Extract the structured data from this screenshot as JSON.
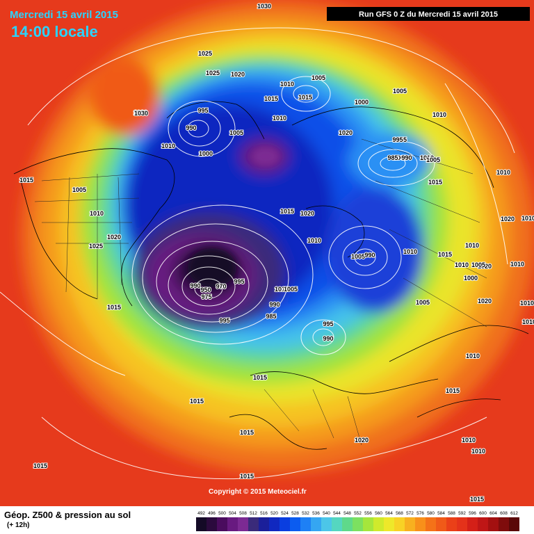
{
  "header": {
    "date": "Mercredi 15 avril 2015",
    "time": "14:00 locale",
    "run": "Run GFS 0 Z du Mercredi 15 avril 2015"
  },
  "footer": {
    "copyright": "Copyright © 2015 Meteociel.fr",
    "title": "Géop. Z500 & pression au sol",
    "subtitle": "(+ 12h)"
  },
  "legend": {
    "labels": [
      "492",
      "496",
      "500",
      "504",
      "508",
      "512",
      "516",
      "520",
      "524",
      "528",
      "532",
      "536",
      "540",
      "544",
      "548",
      "552",
      "556",
      "560",
      "564",
      "568",
      "572",
      "576",
      "580",
      "584",
      "588",
      "592",
      "596",
      "600",
      "604",
      "608",
      "612"
    ],
    "colors": [
      "#140a26",
      "#2b0a3d",
      "#4a0c5e",
      "#681a80",
      "#7c2a93",
      "#3a2a7a",
      "#1b1f9a",
      "#1028c0",
      "#0a3ee0",
      "#0b5cf0",
      "#1e80f5",
      "#35a6f2",
      "#4cc6e8",
      "#55d6c0",
      "#5fd98a",
      "#7ce060",
      "#a5e63c",
      "#cfea2c",
      "#eee82a",
      "#f8d225",
      "#f8b01f",
      "#f8901a",
      "#f47218",
      "#f05a18",
      "#ea4018",
      "#e4321a",
      "#d42018",
      "#bf1616",
      "#a31010",
      "#7f0c0c",
      "#5a0808"
    ],
    "colorbar_colors_note": ""
  },
  "map": {
    "pressure_labels": [
      {
        "text": "1030"
      },
      {
        "text": "1025"
      },
      {
        "text": "1020"
      },
      {
        "text": "1015"
      },
      {
        "text": "1010"
      },
      {
        "text": "1005"
      },
      {
        "text": "995"
      },
      {
        "text": "990"
      },
      {
        "text": "1000"
      },
      {
        "text": "1005"
      },
      {
        "text": "1010"
      },
      {
        "text": "1030"
      },
      {
        "text": "1010"
      },
      {
        "text": "1015"
      },
      {
        "text": "1005"
      },
      {
        "text": "1000"
      },
      {
        "text": "1010"
      },
      {
        "text": "1005"
      },
      {
        "text": "1020"
      },
      {
        "text": "1025"
      },
      {
        "text": "1030"
      },
      {
        "text": "1015"
      },
      {
        "text": "1020"
      },
      {
        "text": "1010"
      },
      {
        "text": "1005"
      },
      {
        "text": "1010"
      },
      {
        "text": "1010"
      },
      {
        "text": "1015"
      },
      {
        "text": "1020"
      },
      {
        "text": "1005"
      },
      {
        "text": "1010"
      },
      {
        "text": "985"
      },
      {
        "text": "990"
      },
      {
        "text": "1005"
      },
      {
        "text": "1015"
      },
      {
        "text": "995"
      },
      {
        "text": "1010"
      },
      {
        "text": "1010"
      },
      {
        "text": "1020"
      },
      {
        "text": "1005"
      },
      {
        "text": "990"
      },
      {
        "text": "1010"
      },
      {
        "text": "1015"
      },
      {
        "text": "1005"
      },
      {
        "text": "1010"
      },
      {
        "text": "1000"
      },
      {
        "text": "1020"
      },
      {
        "text": "1010"
      },
      {
        "text": "1010"
      },
      {
        "text": "1005"
      },
      {
        "text": "990"
      },
      {
        "text": "950"
      },
      {
        "text": "970"
      },
      {
        "text": "995"
      },
      {
        "text": "975"
      },
      {
        "text": "1010"
      },
      {
        "text": "1005"
      },
      {
        "text": "990"
      },
      {
        "text": "985"
      },
      {
        "text": "995"
      },
      {
        "text": "990"
      },
      {
        "text": "995"
      },
      {
        "text": "1015"
      },
      {
        "text": "1025"
      },
      {
        "text": "1020"
      },
      {
        "text": "1015"
      },
      {
        "text": "1015"
      },
      {
        "text": "1015"
      },
      {
        "text": "1015"
      },
      {
        "text": "1015"
      },
      {
        "text": "1020"
      },
      {
        "text": "1010"
      },
      {
        "text": "1010"
      },
      {
        "text": "1010"
      },
      {
        "text": "1010"
      },
      {
        "text": "1015"
      },
      {
        "text": "1015"
      }
    ]
  }
}
